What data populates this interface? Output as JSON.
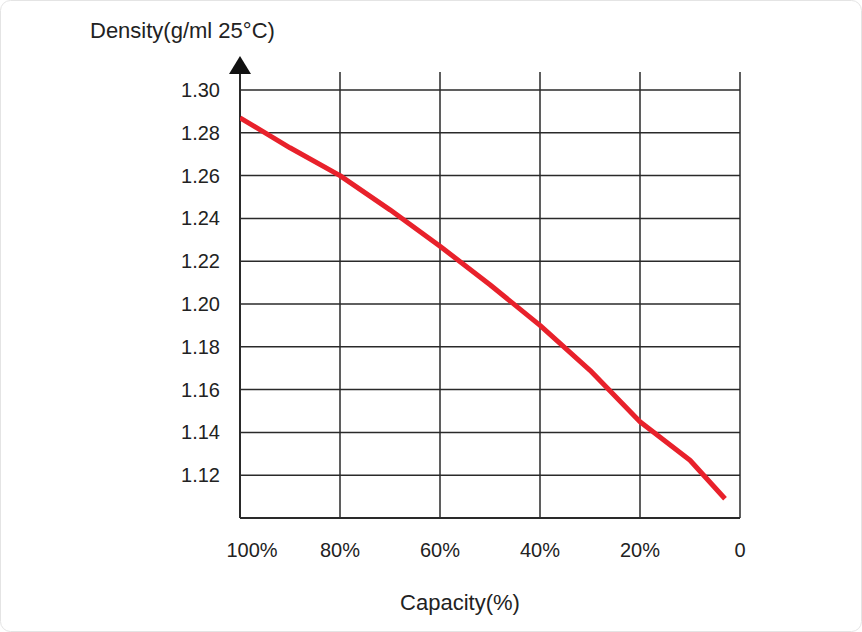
{
  "chart_data": {
    "type": "line",
    "y_label": "Density(g/ml 25°C)",
    "x_label": "Capacity(%)",
    "x": [
      100,
      90,
      80,
      70,
      60,
      50,
      40,
      30,
      20,
      10,
      3
    ],
    "values": [
      1.287,
      1.273,
      1.26,
      1.244,
      1.227,
      1.209,
      1.19,
      1.169,
      1.145,
      1.127,
      1.109
    ],
    "color": "#e8212b",
    "xlim": [
      100,
      0
    ],
    "xticks": [
      {
        "value": 100,
        "label": "100%"
      },
      {
        "value": 80,
        "label": "80%"
      },
      {
        "value": 60,
        "label": "60%"
      },
      {
        "value": 40,
        "label": "40%"
      },
      {
        "value": 20,
        "label": "20%"
      },
      0
    ],
    "ylim": [
      1.1,
      1.3
    ],
    "yticks": [
      {
        "value": 1.12,
        "label": "1.12"
      },
      {
        "value": 1.14,
        "label": "1.14"
      },
      {
        "value": 1.16,
        "label": "1.16"
      },
      {
        "value": 1.18,
        "label": "1.18"
      },
      {
        "value": 1.2,
        "label": "1.20"
      },
      {
        "value": 1.22,
        "label": "1.22"
      },
      {
        "value": 1.24,
        "label": "1.24"
      },
      {
        "value": 1.26,
        "label": "1.26"
      },
      {
        "value": 1.28,
        "label": "1.28"
      },
      {
        "value": 1.3,
        "label": "1.30"
      }
    ],
    "grid": true
  }
}
